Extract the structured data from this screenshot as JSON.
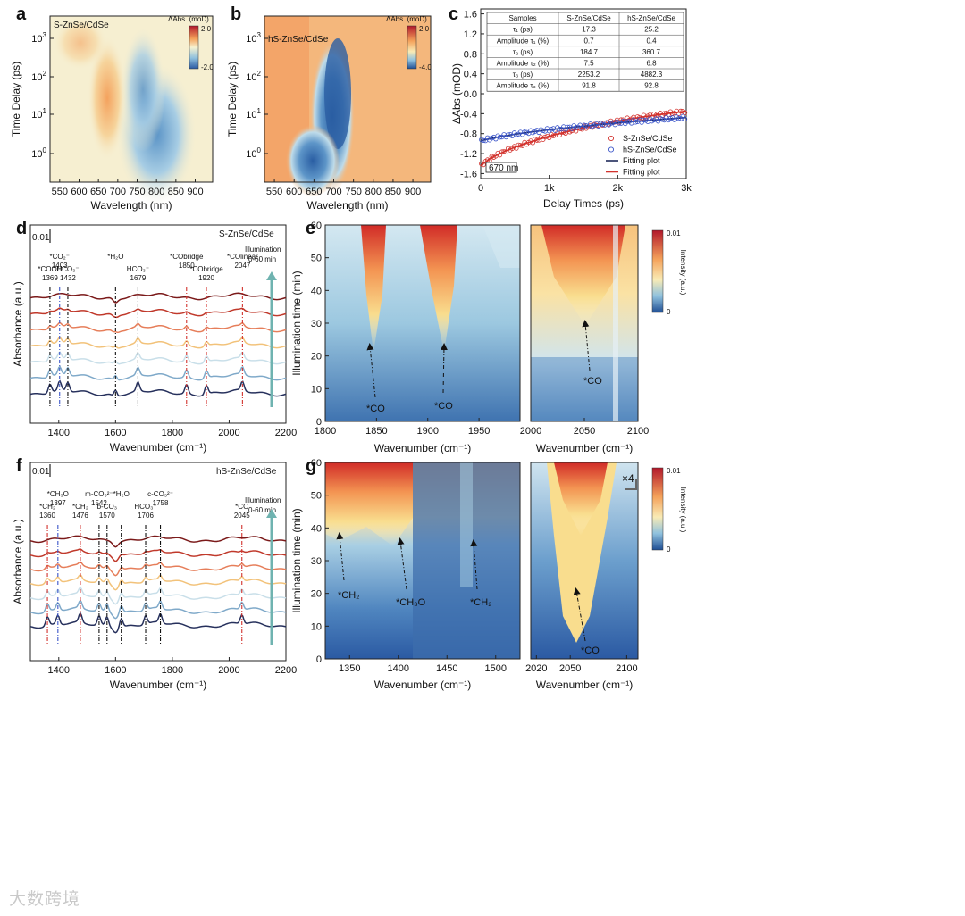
{
  "watermark": "大数跨境",
  "colors": {
    "red": "#d2322d",
    "blue": "#3b55c9",
    "navy": "#1f2b5a",
    "teal": "#6fb3b0",
    "heat_hi": "#c81e1e",
    "heat_mid": "#f7d98a",
    "heat_lo": "#2b5aa3"
  },
  "chart_data": [
    {
      "id": "a",
      "type": "heatmap",
      "panel": "a",
      "label": "S-ZnSe/CdSe",
      "xlabel": "Wavelength (nm)",
      "ylabel": "Time Delay (ps)",
      "xticks": [
        "550",
        "600",
        "650",
        "700",
        "750",
        "800",
        "850",
        "900"
      ],
      "yticks": [
        "10^0",
        "10^1",
        "10^2",
        "10^3"
      ],
      "colorbar_title": "ΔAbs. (moD)",
      "colorbar_max": "2.0",
      "colorbar_min": "-2.0"
    },
    {
      "id": "b",
      "type": "heatmap",
      "panel": "b",
      "label": "hS-ZnSe/CdSe",
      "xlabel": "Wavelength (nm)",
      "ylabel": "Time Delay (ps)",
      "xticks": [
        "550",
        "600",
        "650",
        "700",
        "750",
        "800",
        "850",
        "900"
      ],
      "yticks": [
        "10^0",
        "10^1",
        "10^2",
        "10^3"
      ],
      "colorbar_title": "ΔAbs. (moD)",
      "colorbar_max": "2.0",
      "colorbar_min": "-4.0"
    },
    {
      "id": "c",
      "type": "scatter",
      "panel": "c",
      "xlabel": "Delay Times (ps)",
      "ylabel": "ΔAbs (mOD)",
      "xlim": [
        0,
        3000
      ],
      "ylim": [
        -1.7,
        1.7
      ],
      "xticks": [
        "0",
        "1k",
        "2k",
        "3k"
      ],
      "yticks": [
        "1.6",
        "1.2",
        "0.8",
        "0.4",
        "0.0",
        "-0.4",
        "-0.8",
        "-1.2",
        "-1.6"
      ],
      "probe_label": "670 nm",
      "legend": [
        "S-ZnSe/CdSe",
        "hS-ZnSe/CdSe",
        "Fitting plot",
        "Fitting plot"
      ],
      "table": {
        "headers": [
          "Samples",
          "S-ZnSe/CdSe",
          "hS-ZnSe/CdSe"
        ],
        "rows": [
          {
            "label": "τ₁ (ps)",
            "s": "17.3",
            "hs": "25.2",
            "red": true
          },
          {
            "label": "Amplitude τ₁ (%)",
            "s": "0.7",
            "hs": "0.4",
            "red": false
          },
          {
            "label": "τ₂ (ps)",
            "s": "184.7",
            "hs": "360.7",
            "red": true
          },
          {
            "label": "Amplitude τ₂ (%)",
            "s": "7.5",
            "hs": "6.8",
            "red": false
          },
          {
            "label": "τ₃ (ps)",
            "s": "2253.2",
            "hs": "4882.3",
            "red": true
          },
          {
            "label": "Amplitude τ₃ (%)",
            "s": "91.8",
            "hs": "92.8",
            "red": false
          }
        ]
      },
      "series": [
        {
          "name": "S-ZnSe/CdSe",
          "amplitude": -1.45,
          "offset": 0.0,
          "fit_tau": [
            17.3,
            184.7,
            2253.2
          ],
          "fit_amp_pct": [
            0.7,
            7.5,
            91.8
          ]
        },
        {
          "name": "hS-ZnSe/CdSe",
          "amplitude": -0.95,
          "offset": 0.0,
          "fit_tau": [
            25.2,
            360.7,
            4882.3
          ],
          "fit_amp_pct": [
            0.4,
            6.8,
            92.8
          ]
        }
      ]
    },
    {
      "id": "d",
      "type": "line",
      "panel": "d",
      "sample": "S-ZnSe/CdSe",
      "xlabel": "Wavenumber (cm⁻¹)",
      "ylabel": "Absorbance (a.u.)",
      "xlim": [
        1300,
        2200
      ],
      "xticks": [
        "1400",
        "1600",
        "1800",
        "2000",
        "2200"
      ],
      "scale_bar": "0.01",
      "illumination": [
        "Illumination",
        "0-60 min"
      ],
      "peaks": [
        {
          "wn": 1369,
          "text": "*COOH",
          "num": "1369",
          "color": "black"
        },
        {
          "wn": 1403,
          "text": "*CO₂⁻",
          "num": "1403",
          "color": "blue"
        },
        {
          "wn": 1432,
          "text": "HCO₃⁻",
          "num": "1432",
          "color": "black"
        },
        {
          "wn": 1600,
          "text": "*H₂O",
          "num": "",
          "color": "black"
        },
        {
          "wn": 1679,
          "text": "HCO₃⁻",
          "num": "1679",
          "color": "black"
        },
        {
          "wn": 1850,
          "text": "*CObridge",
          "num": "1850",
          "color": "red"
        },
        {
          "wn": 1920,
          "text": "*CObridge",
          "num": "1920",
          "color": "red"
        },
        {
          "wn": 2047,
          "text": "*COlinear",
          "num": "2047",
          "color": "red"
        }
      ],
      "n_traces": 7
    },
    {
      "id": "e",
      "type": "heatmap",
      "panel": "e",
      "xlabel": "Wavenumber (cm⁻¹)",
      "ylabel": "Illumination time (min)",
      "left_xticks": [
        "1800",
        "1850",
        "1900",
        "1950"
      ],
      "right_xticks": [
        "2000",
        "2050",
        "2100"
      ],
      "yticks": [
        "0",
        "10",
        "20",
        "30",
        "40",
        "50",
        "60"
      ],
      "annotations": [
        "*CO",
        "*CO",
        "*CO"
      ],
      "colorbar_title": "Intensity (a.u.)",
      "colorbar_max": "0.01",
      "colorbar_min": "0"
    },
    {
      "id": "f",
      "type": "line",
      "panel": "f",
      "sample": "hS-ZnSe/CdSe",
      "xlabel": "Wavenumber (cm⁻¹)",
      "ylabel": "Absorbance (a.u.)",
      "xlim": [
        1300,
        2200
      ],
      "xticks": [
        "1400",
        "1600",
        "1800",
        "2000",
        "2200"
      ],
      "scale_bar": "0.01",
      "illumination": [
        "Illumination",
        "0-60 min"
      ],
      "peaks": [
        {
          "wn": 1360,
          "text": "*CH₂",
          "num": "1360",
          "color": "red"
        },
        {
          "wn": 1397,
          "text": "*CH₃O",
          "num": "1397",
          "color": "blue"
        },
        {
          "wn": 1476,
          "text": "*CH₂",
          "num": "1476",
          "color": "red"
        },
        {
          "wn": 1542,
          "text": "m-CO₃²⁻",
          "num": "1542",
          "color": "black"
        },
        {
          "wn": 1570,
          "text": "b-CO₃",
          "num": "1570",
          "color": "black"
        },
        {
          "wn": 1620,
          "text": "*H₂O",
          "num": "",
          "color": "black"
        },
        {
          "wn": 1706,
          "text": "HCO₃⁻",
          "num": "1706",
          "color": "black"
        },
        {
          "wn": 1758,
          "text": "c-CO₃²⁻",
          "num": "1758",
          "color": "black"
        },
        {
          "wn": 2045,
          "text": "*CO",
          "num": "2045",
          "color": "red"
        }
      ],
      "n_traces": 7
    },
    {
      "id": "g",
      "type": "heatmap",
      "panel": "g",
      "xlabel": "Wavenumber (cm⁻¹)",
      "ylabel": "Illumination time (min)",
      "left_xticks": [
        "1350",
        "1400",
        "1450",
        "1500"
      ],
      "right_xticks": [
        "2020",
        "2050",
        "2100"
      ],
      "yticks": [
        "0",
        "10",
        "20",
        "30",
        "40",
        "50",
        "60"
      ],
      "annotations": [
        "*CH₂",
        "*CH₃O",
        "*CH₂",
        "*CO"
      ],
      "multiplier": "×4",
      "colorbar_title": "Intensity (a.u.)",
      "colorbar_max": "0.01",
      "colorbar_min": "0"
    }
  ]
}
